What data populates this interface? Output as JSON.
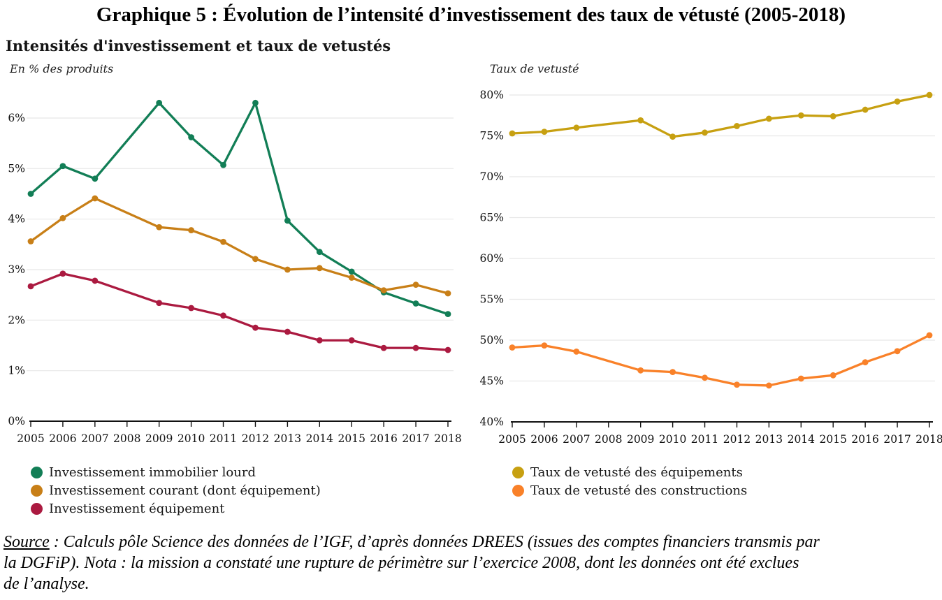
{
  "page": {
    "title": "Graphique 5 : Évolution de l’intensité d’investissement des taux de vétusté (2005-2018)"
  },
  "figure": {
    "title": "Intensités d'investissement et taux de vetustés"
  },
  "chart_data": [
    {
      "type": "line",
      "name": "intensites-investissement",
      "unit_label": "En % des produits",
      "categories": [
        "2005",
        "2006",
        "2007",
        "2008",
        "2009",
        "2010",
        "2011",
        "2012",
        "2013",
        "2014",
        "2015",
        "2016",
        "2017",
        "2018"
      ],
      "missing_years": [
        "2008"
      ],
      "ylim": [
        0,
        6.6
      ],
      "grid": true,
      "legend_position": "bottom-left",
      "y_ticks": [
        {
          "value": 0,
          "label": "0%"
        },
        {
          "value": 1,
          "label": "1%"
        },
        {
          "value": 2,
          "label": "2%"
        },
        {
          "value": 3,
          "label": "3%"
        },
        {
          "value": 4,
          "label": "4%"
        },
        {
          "value": 5,
          "label": "5%"
        },
        {
          "value": 6,
          "label": "6%"
        }
      ],
      "series": [
        {
          "name": "Investissement immobilier lourd",
          "color": "#127e56",
          "values": [
            4.5,
            5.05,
            4.8,
            null,
            6.3,
            5.62,
            5.07,
            6.3,
            3.97,
            3.35,
            2.96,
            2.55,
            2.33,
            2.12
          ]
        },
        {
          "name": "Investissement courant (dont équipement)",
          "color": "#c87f17",
          "values": [
            3.56,
            4.02,
            4.41,
            null,
            3.84,
            3.78,
            3.55,
            3.21,
            3.0,
            3.03,
            2.84,
            2.59,
            2.7,
            2.53
          ]
        },
        {
          "name": "Investissement équipement",
          "color": "#ab1a40",
          "values": [
            2.67,
            2.92,
            2.78,
            null,
            2.34,
            2.24,
            2.09,
            1.85,
            1.77,
            1.6,
            1.6,
            1.45,
            1.45,
            1.41
          ]
        }
      ]
    },
    {
      "type": "line",
      "name": "taux-de-vetuste",
      "unit_label": "Taux de vetusté",
      "categories": [
        "2005",
        "2006",
        "2007",
        "2008",
        "2009",
        "2010",
        "2011",
        "2012",
        "2013",
        "2014",
        "2015",
        "2016",
        "2017",
        "2018"
      ],
      "missing_years": [
        "2008"
      ],
      "ylim": [
        40,
        80
      ],
      "grid": true,
      "legend_position": "bottom-left",
      "y_ticks": [
        {
          "value": 40,
          "label": "40%"
        },
        {
          "value": 45,
          "label": "45%"
        },
        {
          "value": 50,
          "label": "50%"
        },
        {
          "value": 55,
          "label": "55%"
        },
        {
          "value": 60,
          "label": "60%"
        },
        {
          "value": 65,
          "label": "65%"
        },
        {
          "value": 70,
          "label": "70%"
        },
        {
          "value": 75,
          "label": "75%"
        },
        {
          "value": 80,
          "label": "80%"
        }
      ],
      "series": [
        {
          "name": "Taux de vetusté des équipements",
          "color": "#c7a011",
          "values": [
            75.3,
            75.5,
            76.0,
            null,
            76.9,
            74.9,
            75.4,
            76.2,
            77.1,
            77.5,
            77.4,
            78.2,
            79.2,
            80.0
          ]
        },
        {
          "name": "Taux de vetusté des constructions",
          "color": "#f98129",
          "values": [
            49.1,
            49.35,
            48.6,
            null,
            46.3,
            46.1,
            45.4,
            44.55,
            44.45,
            45.3,
            45.7,
            47.3,
            48.65,
            50.6
          ]
        }
      ]
    }
  ],
  "source": {
    "label": "Source",
    "line1_rest": " : Calculs pôle Science des données de l’IGF, d’après données DREES (issues des comptes financiers transmis par",
    "line2": "la DGFiP). Nota : la mission a constaté une rupture de périmètre sur l’exercice 2008, dont les données ont été exclues",
    "line3": "de l’analyse."
  }
}
